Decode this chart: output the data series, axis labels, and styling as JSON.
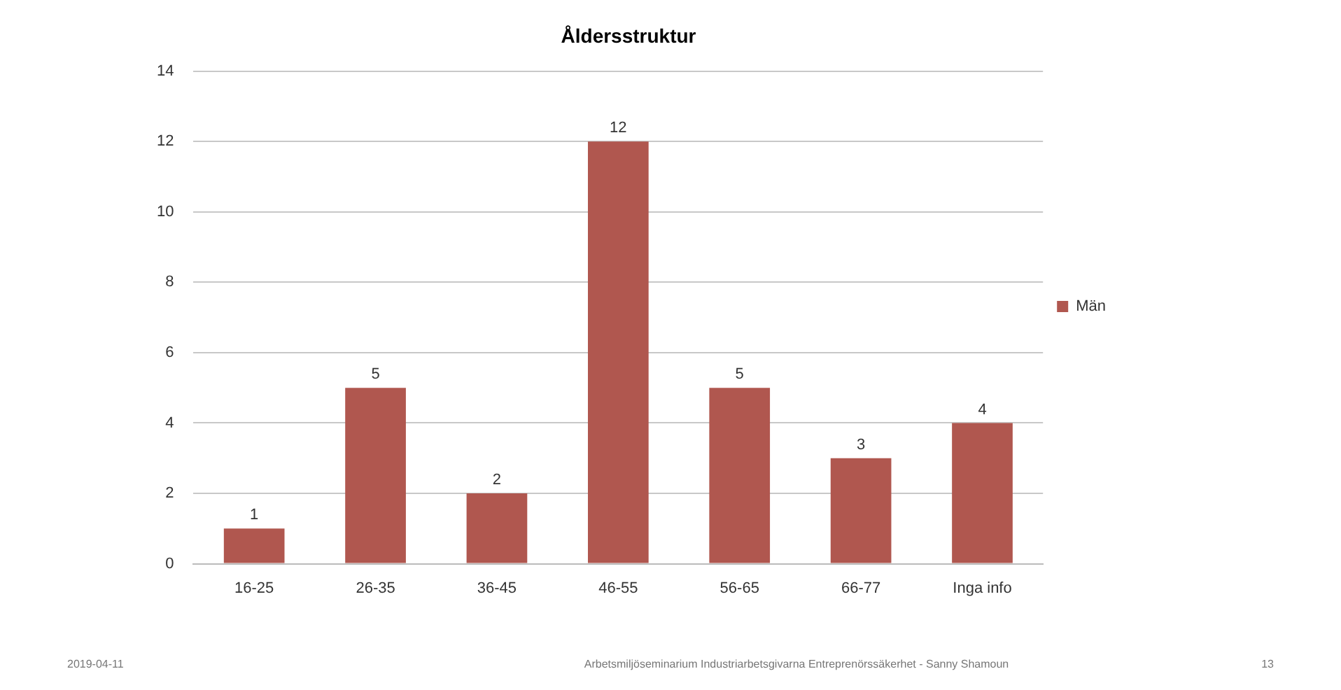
{
  "chart_data": {
    "type": "bar",
    "title": "Åldersstruktur",
    "categories": [
      "16-25",
      "26-35",
      "36-45",
      "46-55",
      "56-65",
      "66-77",
      "Inga info"
    ],
    "series": [
      {
        "name": "Män",
        "color": "#b0574f",
        "values": [
          1,
          5,
          2,
          12,
          5,
          3,
          4
        ]
      }
    ],
    "ylim": [
      0,
      14
    ],
    "yticks": [
      0,
      2,
      4,
      6,
      8,
      10,
      12,
      14
    ],
    "grid": "y",
    "legend": "right",
    "data_labels": true,
    "annotations": [
      "2019-04-11",
      "Arbetsmiljöseminarium Industriarbetsgivarna Entreprenörssäkerhet - Sanny Shamoun",
      "13"
    ]
  }
}
